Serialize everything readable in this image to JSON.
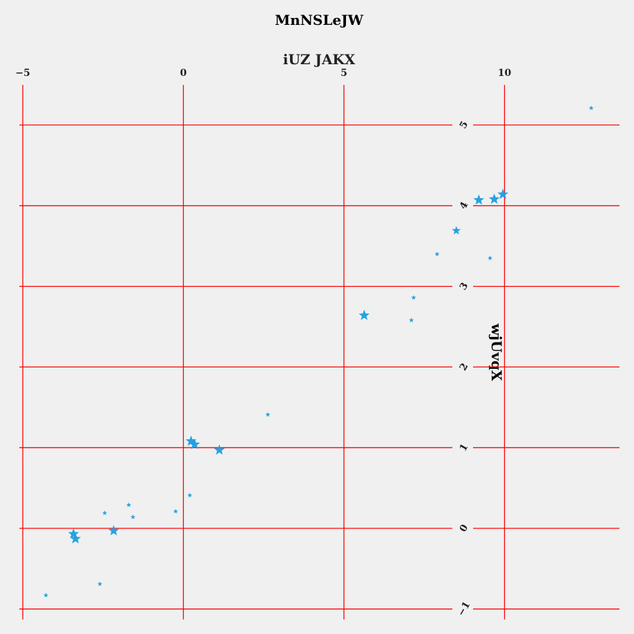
{
  "chart_data": {
    "type": "scatter",
    "title": "MnNSLeJW",
    "xlabel": "iUZ JAKX",
    "ylabel": "wjUvqX",
    "xlim": [
      -5,
      13.6
    ],
    "ylim": [
      -1.1,
      5.5
    ],
    "xticks": [
      -5,
      0,
      5,
      10
    ],
    "xtick_labels": [
      "−5",
      "0",
      "5",
      "10"
    ],
    "yticks": [
      -1,
      0,
      1,
      2,
      3,
      4,
      5
    ],
    "ytick_labels": [
      "−1",
      "0",
      "1",
      "2",
      "3",
      "4",
      "5"
    ],
    "xaxis_position": "top",
    "yaxis_position": "inside-right",
    "grid": true,
    "marker": "star",
    "color": "#1a9de0",
    "grid_color": "#ff0000",
    "points": [
      {
        "x": 12.7,
        "y": 5.21,
        "size": 5
      },
      {
        "x": 9.95,
        "y": 4.14,
        "size": 11
      },
      {
        "x": 9.68,
        "y": 4.08,
        "size": 11
      },
      {
        "x": 9.2,
        "y": 4.07,
        "size": 11
      },
      {
        "x": 8.5,
        "y": 3.69,
        "size": 9
      },
      {
        "x": 7.9,
        "y": 3.4,
        "size": 5
      },
      {
        "x": 9.55,
        "y": 3.35,
        "size": 5
      },
      {
        "x": 7.17,
        "y": 2.86,
        "size": 5
      },
      {
        "x": 5.63,
        "y": 2.64,
        "size": 11
      },
      {
        "x": 7.1,
        "y": 2.58,
        "size": 5
      },
      {
        "x": 2.63,
        "y": 1.41,
        "size": 5
      },
      {
        "x": 0.24,
        "y": 1.08,
        "size": 11
      },
      {
        "x": 0.35,
        "y": 1.04,
        "size": 11
      },
      {
        "x": 1.12,
        "y": 0.97,
        "size": 11
      },
      {
        "x": 0.2,
        "y": 0.41,
        "size": 5
      },
      {
        "x": -1.7,
        "y": 0.29,
        "size": 5
      },
      {
        "x": -0.24,
        "y": 0.21,
        "size": 5
      },
      {
        "x": -2.45,
        "y": 0.19,
        "size": 5
      },
      {
        "x": -1.57,
        "y": 0.14,
        "size": 5
      },
      {
        "x": -2.17,
        "y": -0.03,
        "size": 11
      },
      {
        "x": -3.42,
        "y": -0.07,
        "size": 11
      },
      {
        "x": -3.36,
        "y": -0.13,
        "size": 11
      },
      {
        "x": -2.6,
        "y": -0.69,
        "size": 5
      },
      {
        "x": -4.28,
        "y": -0.83,
        "size": 5
      }
    ]
  }
}
